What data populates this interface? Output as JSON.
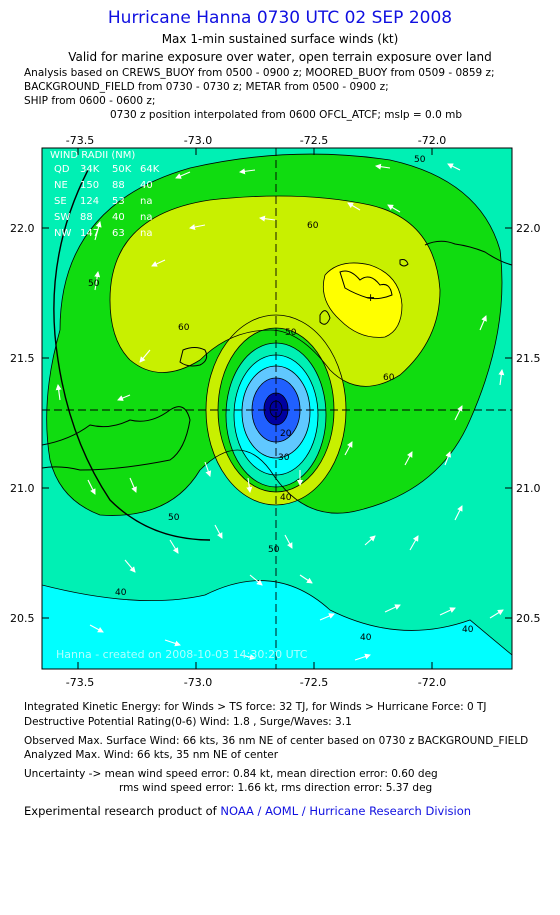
{
  "header": {
    "title": "Hurricane Hanna 0730 UTC 02 SEP 2008",
    "subtitle1": "Max 1-min sustained surface winds (kt)",
    "subtitle2": "Valid for marine exposure over water, open terrain exposure over land",
    "analysis_lines": [
      "Analysis based on  CREWS_BUOY from 0500 - 0900 z;  MOORED_BUOY from 0509 - 0859 z;",
      "BACKGROUND_FIELD from 0730 - 0730 z;  METAR from 0500 - 0900 z;",
      "SHIP from 0600 - 0600 z;"
    ],
    "position_line": "0730 z position interpolated from 0600 OFCL_ATCF; mslp = 0.0 mb"
  },
  "map": {
    "x_ticks": [
      "-73.5",
      "-73.0",
      "-72.5",
      "-72.0"
    ],
    "y_ticks": [
      "22.0",
      "21.5",
      "21.0",
      "20.5"
    ],
    "wind_radii": {
      "title": "WIND RADII (NM)",
      "header": [
        "QD",
        "34K",
        "50K",
        "64K"
      ],
      "rows": [
        [
          "NE",
          "150",
          "88",
          "40"
        ],
        [
          "SE",
          "124",
          "53",
          "na"
        ],
        [
          "SW",
          "88",
          "40",
          "na"
        ],
        [
          "NW",
          "147",
          "63",
          "na"
        ]
      ]
    },
    "credit": "Hanna - created on 2008-10-03 14:30:20 UTC",
    "contour_labels": [
      "50",
      "50",
      "50",
      "60",
      "60",
      "60",
      "50",
      "40",
      "30",
      "20",
      "50",
      "40",
      "40",
      "40"
    ],
    "colors": {
      "c40": "#00f0b4",
      "c50": "#10dc10",
      "c60": "#c8f000",
      "c64": "#ffff00",
      "outer": "#00ffff",
      "core_dark": "#0000a0",
      "core_mid": "#2060ff",
      "core_light": "#60c8ff"
    }
  },
  "footer": {
    "ike": "Integrated Kinetic Energy:  for Winds > TS force: 32 TJ,  for Winds > Hurricane Force: 0 TJ",
    "dpr": "Destructive Potential Rating(0-6)   Wind: 1.8 , Surge/Waves: 3.1",
    "obs_max": "Observed Max. Surface Wind: 66 kts, 36 nm NE of center based on 0730 z BACKGROUND_FIELD",
    "ana_max": "Analyzed Max. Wind: 66 kts, 35 nm NE of center",
    "unc1": "Uncertainty -> mean wind speed error: 0.84 kt,   mean direction error: 0.60 deg",
    "unc2": "rms wind speed error: 1.66 kt,   rms direction error: 5.37 deg",
    "product_prefix": "Experimental research product of ",
    "product_org": "NOAA / AOML / Hurricane Research Division"
  }
}
